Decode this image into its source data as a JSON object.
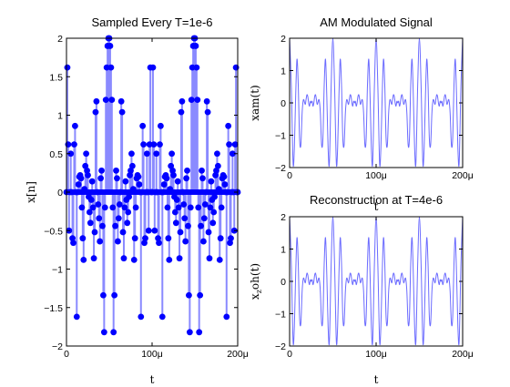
{
  "chart_data": [
    {
      "type": "stem",
      "title": "Sampled Every T=1e-6",
      "xlabel": "t",
      "ylabel": "x[n]",
      "xlim": [
        0,
        0.0002
      ],
      "ylim": [
        -2,
        2
      ],
      "xticks": [
        "0",
        "100μ",
        "200μ"
      ],
      "yticks": [
        "2",
        "1.5",
        "1",
        "0.5",
        "0",
        "−0.5",
        "−1",
        "−1.5",
        "−2"
      ],
      "series": [
        {
          "color": "#0000ff",
          "x_start": 0,
          "x_step": 1e-06,
          "y": [
            0,
            1.62,
            0.62,
            -0.5,
            0,
            0.5,
            0,
            -0.6,
            -0.66,
            0.62,
            0.86,
            0,
            -1.62,
            0,
            0.1,
            0.2,
            0.22,
            0.18,
            -0.2,
            -0.6,
            -0.88,
            0.04,
            0.34,
            0.5,
            0.28,
            0.22,
            -0.06,
            -0.26,
            -0.4,
            -0.1,
            0.14,
            -0.2,
            -0.86,
            -0.52,
            1.04,
            1.18,
            0,
            -0.16,
            -0.34,
            -0.64,
            0.18,
            0.28,
            -0.44,
            -1.34,
            -1.82,
            -0.2,
            1.2,
            1.62,
            1.9,
            2,
            2,
            1.9,
            1.62,
            1.2,
            -0.2,
            -1.82,
            -1.34,
            -0.44,
            0.28,
            0.18,
            -0.64,
            -0.34,
            -0.16,
            0,
            1.18,
            1.04,
            -0.52,
            -0.86,
            -0.2,
            0.14,
            -0.1,
            -0.4,
            -0.26,
            -0.06,
            0.22,
            0.28,
            0.5,
            0.34,
            0.04,
            -0.88,
            -0.6,
            -0.2,
            0.18,
            0.22,
            0.2,
            0.1,
            0,
            -1.62,
            0,
            0.86,
            0.62,
            -0.66,
            -0.6,
            0,
            0.5,
            0,
            -0.5,
            0.62,
            1.62,
            0,
            0,
            1.62,
            0.62,
            -0.5,
            0,
            0.5,
            0,
            -0.6,
            -0.66,
            0.62,
            0.86,
            0,
            -1.62,
            0,
            0.1,
            0.2,
            0.22,
            0.18,
            -0.2,
            -0.6,
            -0.88,
            0.04,
            0.34,
            0.5,
            0.28,
            0.22,
            -0.06,
            -0.26,
            -0.4,
            -0.1,
            0.14,
            -0.2,
            -0.86,
            -0.52,
            1.04,
            1.18,
            0,
            -0.16,
            -0.34,
            -0.64,
            0.18,
            0.28,
            -0.44,
            -1.34,
            -1.82,
            -0.2,
            1.2,
            1.62,
            1.9,
            2,
            2,
            1.9,
            1.62,
            1.2,
            -0.2,
            -1.82,
            -1.34,
            -0.44,
            0.28,
            0.18,
            -0.64,
            -0.34,
            -0.16,
            0,
            1.18,
            1.04,
            -0.52,
            -0.86,
            -0.2,
            0.14,
            -0.1,
            -0.4,
            -0.26,
            -0.06,
            0.22,
            0.28,
            0.5,
            0.34,
            0.04,
            -0.88,
            -0.6,
            -0.2,
            0.18,
            0.22,
            0.2,
            0.1,
            0,
            -1.62,
            0,
            0.86,
            0.62,
            -0.66,
            -0.6,
            0,
            0.5,
            0,
            -0.5,
            0.62,
            1.62,
            0,
            0
          ]
        }
      ]
    },
    {
      "type": "line",
      "title": "AM Modulated Signal",
      "xlabel": "t",
      "ylabel": "xam(t)",
      "xlim": [
        0,
        0.0002
      ],
      "ylim": [
        -2,
        2
      ],
      "xticks": [
        "0",
        "100μ",
        "200μ"
      ],
      "yticks": [
        "2",
        "1",
        "0",
        "−1",
        "−2"
      ],
      "period": 5e-05,
      "series": [
        {
          "color": "#6b6bff",
          "period_x": [
            0,
            2e-06,
            4e-06,
            5.5e-06,
            7e-06,
            8.5e-06,
            1e-05,
            1.15e-05,
            1.3e-05,
            1.45e-05,
            1.6e-05,
            1.8e-05,
            1.9e-05,
            2e-05,
            2.1e-05,
            2.2e-05,
            2.3e-05,
            2.4e-05,
            2.5e-05,
            2.6e-05,
            2.7e-05,
            2.8e-05,
            2.9e-05,
            3e-05,
            3.1e-05,
            3.2e-05,
            3.4e-05,
            3.55e-05,
            3.7e-05,
            3.85e-05,
            4e-05,
            4.15e-05,
            4.3e-05,
            4.45e-05,
            4.6e-05,
            4.8e-05,
            5e-05
          ],
          "period_y": [
            2,
            0.5,
            -1.85,
            -1.4,
            0.2,
            1.35,
            0.55,
            -1.1,
            -1.3,
            -0.3,
            0.1,
            -0.05,
            0.1,
            0.25,
            0.2,
            0,
            -0.1,
            0.05,
            0,
            0.05,
            -0.1,
            0,
            0.2,
            0.25,
            0.1,
            -0.05,
            0.1,
            -0.3,
            -1.3,
            -1.1,
            0.55,
            1.35,
            0.2,
            -1.4,
            -1.85,
            0.5,
            2
          ]
        }
      ]
    },
    {
      "type": "line",
      "title": "Reconstruction at T=4e-6",
      "xlabel": "t",
      "ylabel": "x_zoh(t)",
      "ylabel_parts": [
        "x",
        "z",
        "oh(t)"
      ],
      "xlim": [
        0,
        0.0002
      ],
      "ylim": [
        -2,
        2
      ],
      "xticks": [
        "0",
        "100μ",
        "200μ"
      ],
      "yticks": [
        "2",
        "1",
        "0",
        "−1",
        "−2"
      ],
      "period": 5e-05,
      "series": [
        {
          "color": "#6b6bff",
          "period_x": [
            0,
            2e-06,
            4e-06,
            5.5e-06,
            7e-06,
            8.5e-06,
            1e-05,
            1.15e-05,
            1.3e-05,
            1.45e-05,
            1.6e-05,
            1.8e-05,
            1.9e-05,
            2e-05,
            2.1e-05,
            2.2e-05,
            2.3e-05,
            2.4e-05,
            2.5e-05,
            2.6e-05,
            2.7e-05,
            2.8e-05,
            2.9e-05,
            3e-05,
            3.1e-05,
            3.2e-05,
            3.4e-05,
            3.55e-05,
            3.7e-05,
            3.85e-05,
            4e-05,
            4.15e-05,
            4.3e-05,
            4.45e-05,
            4.6e-05,
            4.8e-05,
            5e-05
          ],
          "period_y": [
            2,
            0.5,
            -1.85,
            -1.4,
            0.2,
            1.35,
            0.55,
            -1.1,
            -1.3,
            -0.3,
            0.1,
            -0.05,
            0.1,
            0.25,
            0.2,
            0,
            -0.1,
            0.05,
            0,
            0.05,
            -0.1,
            0,
            0.2,
            0.25,
            0.1,
            -0.05,
            0.1,
            -0.3,
            -1.3,
            -1.1,
            0.55,
            1.35,
            0.2,
            -1.4,
            -1.85,
            0.5,
            2
          ]
        }
      ]
    }
  ]
}
